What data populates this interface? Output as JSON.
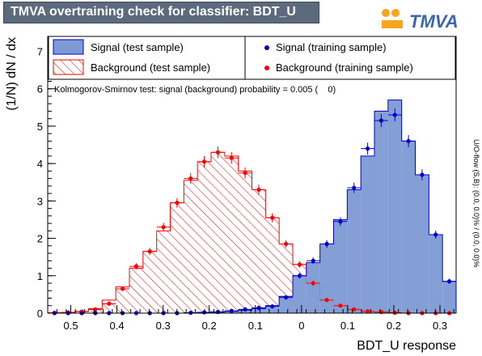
{
  "header": {
    "title": "TMVA overtraining check for classifier: BDT_U",
    "logo_text": "TMVA"
  },
  "chart_data": {
    "type": "histogram",
    "xlabel": "BDT_U response",
    "ylabel": "(1/N) dN / dx",
    "xlim": [
      -0.55,
      0.335
    ],
    "ylim": [
      0,
      7.4
    ],
    "x_ticks": [
      -0.5,
      -0.4,
      -0.3,
      -0.2,
      -0.1,
      0,
      0.1,
      0.2,
      0.3
    ],
    "x_tick_labels": [
      "0.5",
      "0.4",
      "0.3",
      "0.2",
      "0.1",
      "0",
      "0.1",
      "0.2",
      "0.3"
    ],
    "y_ticks": [
      0,
      1,
      2,
      3,
      4,
      5,
      6,
      7
    ],
    "y_tick_labels": [
      "0",
      "1",
      "2",
      "3",
      "4",
      "5",
      "6",
      "7"
    ],
    "annotation": "Kolmogorov-Smirnov test: signal (background) probability = 0.005 (    0)",
    "side_note": "U/O-flow (S,B): (0.0, 0.0)% / (0.0, 0.0)%",
    "legend": {
      "placement": "top",
      "entries": [
        {
          "label": "Signal (test sample)",
          "style": "filled-blue"
        },
        {
          "label": "Signal (training sample)",
          "style": "blue-marker"
        },
        {
          "label": "Background (test sample)",
          "style": "red-hatch"
        },
        {
          "label": "Background (training sample)",
          "style": "red-marker"
        }
      ]
    },
    "colors": {
      "signal_fill": "#7d9ad4",
      "signal_line": "#0000cc",
      "signal_marker": "#0000cc",
      "background_hatch": "#ff0000",
      "background_marker": "#ff0000",
      "title_bg": "#5b6b7d"
    },
    "bin_edges": [
      -0.55,
      -0.5205,
      -0.491,
      -0.4615,
      -0.432,
      -0.4025,
      -0.373,
      -0.3435,
      -0.314,
      -0.2845,
      -0.255,
      -0.2255,
      -0.196,
      -0.1665,
      -0.137,
      -0.1075,
      -0.078,
      -0.0485,
      -0.019,
      0.0105,
      0.04,
      0.0695,
      0.099,
      0.1285,
      0.158,
      0.1875,
      0.217,
      0.2465,
      0.276,
      0.3055,
      0.335
    ],
    "series": [
      {
        "name": "Signal (test sample)",
        "kind": "filled-histogram",
        "values": [
          0,
          0,
          0,
          0,
          0,
          0,
          0,
          0,
          0,
          0,
          0.01,
          0.02,
          0.03,
          0.05,
          0.08,
          0.12,
          0.2,
          0.45,
          1.0,
          1.35,
          1.85,
          2.5,
          3.3,
          4.2,
          5.4,
          5.7,
          4.6,
          3.7,
          2.1,
          0.85
        ]
      },
      {
        "name": "Background (test sample)",
        "kind": "hatched-histogram",
        "values": [
          0.01,
          0.02,
          0.05,
          0.12,
          0.35,
          0.7,
          1.2,
          1.65,
          2.2,
          2.95,
          3.55,
          4.05,
          4.3,
          4.2,
          3.8,
          3.3,
          2.55,
          1.85,
          1.3,
          0.8,
          0.35,
          0.18,
          0.08,
          0.05,
          0.02,
          0.01,
          0,
          0,
          0,
          0
        ]
      },
      {
        "name": "Signal (training sample)",
        "kind": "markers",
        "values": [
          0,
          0,
          0,
          0,
          0,
          0,
          0,
          0,
          0,
          0,
          0.01,
          0.02,
          0.03,
          0.06,
          0.1,
          0.14,
          0.18,
          0.42,
          1.0,
          1.4,
          1.85,
          2.45,
          3.35,
          4.4,
          5.15,
          5.3,
          4.6,
          3.7,
          2.1,
          0.85
        ]
      },
      {
        "name": "Background (training sample)",
        "kind": "markers",
        "values": [
          0.01,
          0.02,
          0.04,
          0.1,
          0.25,
          0.65,
          1.25,
          1.65,
          2.3,
          2.95,
          3.6,
          4.05,
          4.3,
          4.15,
          3.75,
          3.3,
          2.55,
          1.85,
          1.3,
          0.8,
          0.35,
          0.2,
          0.1,
          0.05,
          0.03,
          0.01,
          0,
          0,
          0,
          0
        ]
      }
    ]
  }
}
